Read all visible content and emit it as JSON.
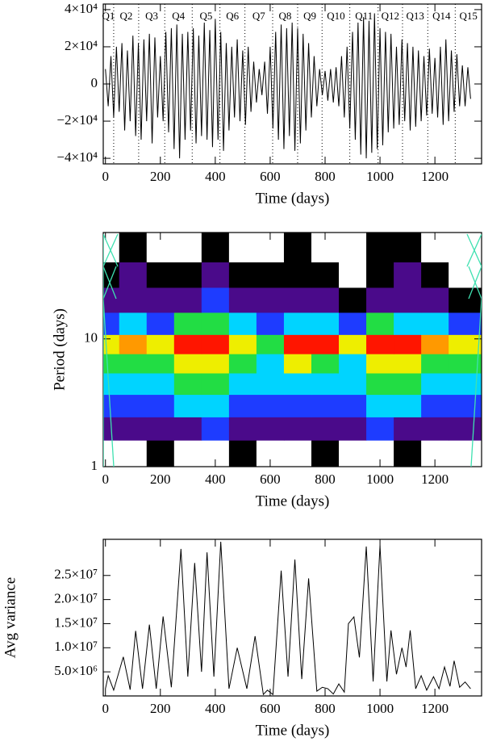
{
  "chart_data": [
    {
      "type": "line",
      "xlabel": "Time (days)",
      "xlim": [
        -8,
        1370
      ],
      "xticks": [
        0,
        200,
        400,
        600,
        800,
        1000,
        1200
      ],
      "ylim": [
        -43000,
        43000
      ],
      "yticks": [
        {
          "value": -40000,
          "label": "−4×10⁴"
        },
        {
          "value": -20000,
          "label": "−2×10⁴"
        },
        0,
        {
          "value": 20000,
          "label": "2×10⁴"
        },
        {
          "value": 40000,
          "label": "4×10⁴"
        }
      ],
      "quarters": [
        "Q1",
        "Q2",
        "Q3",
        "Q4",
        "Q5",
        "Q6",
        "Q7",
        "Q8",
        "Q9",
        "Q10",
        "Q11",
        "Q12",
        "Q13",
        "Q14",
        "Q15"
      ],
      "quarter_bounds": [
        30,
        121,
        216,
        316,
        417,
        508,
        609,
        700,
        789,
        890,
        993,
        1082,
        1174,
        1274
      ],
      "series": [
        {
          "color": "#000000",
          "x": [
            0,
            10,
            20,
            30,
            40,
            50,
            60,
            70,
            80,
            90,
            100,
            110,
            120,
            130,
            140,
            150,
            160,
            170,
            180,
            190,
            200,
            210,
            220,
            230,
            240,
            250,
            260,
            270,
            280,
            290,
            300,
            310,
            320,
            330,
            340,
            350,
            360,
            370,
            380,
            390,
            400,
            410,
            420,
            430,
            440,
            450,
            460,
            470,
            480,
            490,
            500,
            510,
            520,
            530,
            540,
            550,
            560,
            570,
            580,
            590,
            600,
            610,
            620,
            630,
            640,
            650,
            660,
            670,
            680,
            690,
            700,
            710,
            720,
            730,
            740,
            750,
            760,
            770,
            780,
            790,
            800,
            810,
            820,
            830,
            840,
            850,
            860,
            870,
            880,
            890,
            900,
            910,
            920,
            930,
            940,
            950,
            960,
            970,
            980,
            990,
            1000,
            1010,
            1020,
            1030,
            1040,
            1050,
            1060,
            1070,
            1080,
            1090,
            1100,
            1110,
            1120,
            1130,
            1140,
            1150,
            1160,
            1170,
            1180,
            1190,
            1200,
            1210,
            1220,
            1230,
            1240,
            1250,
            1260,
            1270,
            1280,
            1290,
            1300,
            1310,
            1320,
            1330
          ],
          "values": [
            8000,
            -12000,
            15000,
            -18000,
            20000,
            -15000,
            22000,
            -25000,
            18000,
            -20000,
            26000,
            -28000,
            22000,
            -30000,
            24000,
            -20000,
            27000,
            -32000,
            25000,
            -18000,
            15000,
            -20000,
            28000,
            -26000,
            30000,
            -35000,
            32000,
            -40000,
            27000,
            -30000,
            28000,
            -25000,
            30000,
            -32000,
            26000,
            -28000,
            33000,
            -30000,
            29000,
            -34000,
            35000,
            -30000,
            28000,
            -36000,
            22000,
            -25000,
            20000,
            -18000,
            24000,
            -20000,
            18000,
            -22000,
            20000,
            -15000,
            12000,
            -10000,
            8000,
            -6000,
            12000,
            -16000,
            20000,
            -24000,
            28000,
            -30000,
            32000,
            -35000,
            30000,
            -28000,
            33000,
            -36000,
            30000,
            -32000,
            27000,
            -25000,
            22000,
            -18000,
            15000,
            -12000,
            8000,
            -6000,
            7000,
            -9000,
            8000,
            -10000,
            9000,
            -12000,
            15000,
            -18000,
            20000,
            -24000,
            28000,
            -30000,
            33000,
            -38000,
            36000,
            -40000,
            34000,
            -37000,
            38000,
            -35000,
            30000,
            -33000,
            28000,
            -26000,
            27000,
            -24000,
            20000,
            -22000,
            24000,
            -20000,
            22000,
            -25000,
            20000,
            -23000,
            18000,
            -20000,
            15000,
            -17000,
            19000,
            -16000,
            14000,
            -18000,
            20000,
            -22000,
            24000,
            -20000,
            18000,
            -15000,
            16000,
            -12000,
            10000,
            -12000,
            9000,
            -8000
          ]
        }
      ]
    },
    {
      "type": "heatmap",
      "xlabel": "Time (days)",
      "ylabel": "Period (days)",
      "xlim": [
        -8,
        1370
      ],
      "xticks": [
        0,
        200,
        400,
        600,
        800,
        1000,
        1200
      ],
      "ylim": [
        1,
        68
      ],
      "ylog": true,
      "yticks": [
        1,
        10
      ],
      "colors": [
        "#ffffff",
        "#000000",
        "#4a0a8a",
        "#1e3cff",
        "#00d4ff",
        "#22dd44",
        "#eeee00",
        "#ff9900",
        "#ff1500"
      ],
      "x": [
        0,
        100,
        200,
        300,
        400,
        500,
        600,
        700,
        800,
        900,
        1000,
        1100,
        1200,
        1300
      ],
      "y": [
        1.3,
        2,
        3,
        4.5,
        6.5,
        9,
        13,
        20,
        32,
        50
      ],
      "z": [
        [
          0,
          0,
          1,
          0,
          0,
          1,
          0,
          0,
          1,
          0,
          0,
          1,
          0,
          0
        ],
        [
          2,
          2,
          2,
          2,
          3,
          2,
          2,
          2,
          2,
          2,
          3,
          2,
          2,
          2
        ],
        [
          3,
          3,
          3,
          4,
          4,
          3,
          3,
          3,
          3,
          3,
          4,
          4,
          3,
          3
        ],
        [
          4,
          4,
          4,
          5,
          5,
          4,
          4,
          4,
          4,
          4,
          5,
          5,
          4,
          4
        ],
        [
          5,
          5,
          5,
          6,
          6,
          5,
          4,
          6,
          5,
          4,
          6,
          6,
          5,
          5
        ],
        [
          6,
          7,
          6,
          8,
          8,
          6,
          5,
          8,
          8,
          6,
          8,
          8,
          7,
          6
        ],
        [
          3,
          4,
          3,
          5,
          5,
          4,
          3,
          4,
          4,
          3,
          5,
          4,
          4,
          3
        ],
        [
          2,
          2,
          2,
          2,
          3,
          2,
          2,
          2,
          2,
          1,
          2,
          2,
          2,
          1
        ],
        [
          1,
          2,
          1,
          1,
          2,
          1,
          1,
          1,
          1,
          0,
          1,
          2,
          1,
          0
        ],
        [
          0,
          1,
          0,
          0,
          1,
          0,
          0,
          1,
          0,
          0,
          1,
          1,
          0,
          0
        ]
      ]
    },
    {
      "type": "line",
      "xlabel": "Time (days)",
      "ylabel": "Avg variance",
      "xlim": [
        -8,
        1370
      ],
      "xticks": [
        0,
        200,
        400,
        600,
        800,
        1000,
        1200
      ],
      "ylim": [
        0,
        32500000
      ],
      "yticks": [
        {
          "value": 5000000,
          "label": "5.0×10⁶"
        },
        {
          "value": 10000000,
          "label": "1.0×10⁷"
        },
        {
          "value": 15000000,
          "label": "1.5×10⁷"
        },
        {
          "value": 20000000,
          "label": "2.0×10⁷"
        },
        {
          "value": 25000000,
          "label": "2.5×10⁷"
        }
      ],
      "series": [
        {
          "color": "#000000",
          "x": [
            0,
            10,
            30,
            65,
            90,
            110,
            135,
            160,
            185,
            210,
            240,
            275,
            300,
            325,
            350,
            370,
            395,
            420,
            450,
            480,
            515,
            545,
            575,
            590,
            610,
            640,
            665,
            690,
            715,
            740,
            770,
            790,
            810,
            830,
            850,
            870,
            885,
            905,
            925,
            950,
            975,
            1000,
            1025,
            1040,
            1060,
            1080,
            1095,
            1110,
            1130,
            1150,
            1170,
            1195,
            1215,
            1235,
            1255,
            1270,
            1290,
            1310,
            1330
          ],
          "values": [
            1500000,
            4200000,
            1200000,
            8100000,
            1300000,
            13500000,
            1500000,
            14800000,
            1500000,
            16500000,
            1800000,
            30500000,
            4000000,
            27600000,
            5000000,
            29800000,
            4000000,
            32000000,
            1500000,
            10000000,
            1500000,
            12400000,
            300000,
            1200000,
            300000,
            26000000,
            4000000,
            28300000,
            3500000,
            24400000,
            1000000,
            1800000,
            1500000,
            400000,
            2500000,
            800000,
            15000000,
            16400000,
            8000000,
            31000000,
            3000000,
            31200000,
            3000000,
            13600000,
            4500000,
            10000000,
            6000000,
            13600000,
            1500000,
            4200000,
            1200000,
            4000000,
            1500000,
            6000000,
            2000000,
            7300000,
            1800000,
            2900000,
            1500000
          ]
        }
      ]
    }
  ]
}
